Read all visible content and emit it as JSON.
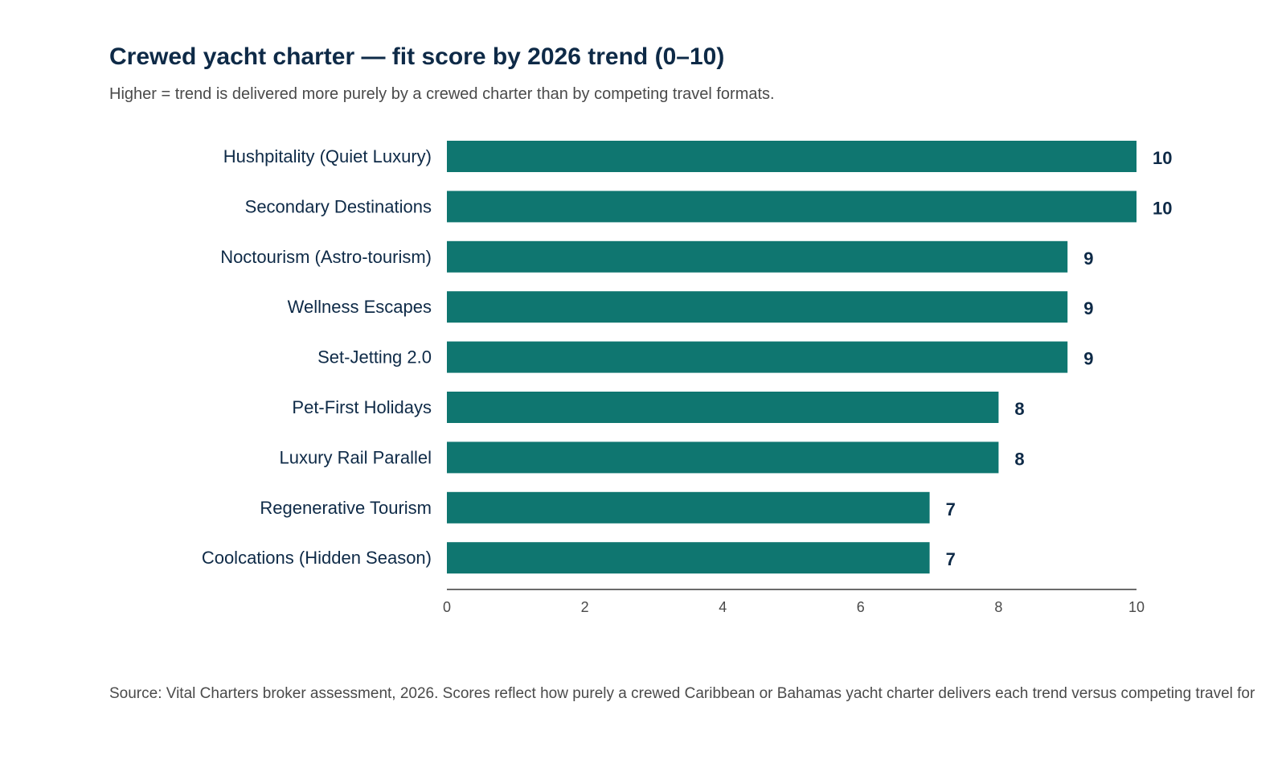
{
  "chart_data": {
    "type": "bar",
    "orientation": "horizontal",
    "title": "Crewed yacht charter — fit score by 2026 trend (0–10)",
    "subtitle": "Higher = trend is delivered more purely by a crewed charter than by competing travel formats.",
    "categories": [
      "Hushpitality (Quiet Luxury)",
      "Secondary Destinations",
      "Noctourism (Astro-tourism)",
      "Wellness Escapes",
      "Set-Jetting 2.0",
      "Pet-First Holidays",
      "Luxury Rail Parallel",
      "Regenerative Tourism",
      "Coolcations (Hidden Season)"
    ],
    "values": [
      10,
      10,
      9,
      9,
      9,
      8,
      8,
      7,
      7
    ],
    "xlim": [
      0,
      10
    ],
    "xticks": [
      0,
      2,
      4,
      6,
      8,
      10
    ],
    "xlabel": "",
    "ylabel": "",
    "grid": false,
    "legend": "none",
    "bar_color": "#0f7670",
    "source": "Source: Vital Charters broker assessment, 2026. Scores reflect how purely a crewed Caribbean or Bahamas yacht charter delivers each trend versus competing travel for"
  }
}
